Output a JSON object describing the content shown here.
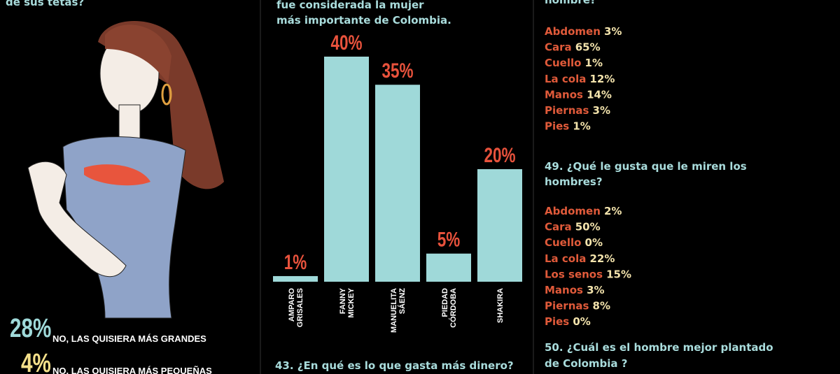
{
  "left": {
    "question_end": "de sus tetas?",
    "answers": [
      {
        "percent": "28%",
        "label": "NO, LAS QUISIERA MÁS GRANDES"
      },
      {
        "percent": "4%",
        "label": "NO, LAS QUISIERA MÁS PEQUEÑAS"
      }
    ]
  },
  "middle": {
    "question_lines": [
      "fue considerada la mujer",
      "más importante de Colombia."
    ],
    "chart_data": {
      "type": "bar",
      "categories": [
        [
          "AMPARO",
          "GRISALES"
        ],
        [
          "FANNY",
          "MICKEY"
        ],
        [
          "MANUELITA",
          "SÁENZ"
        ],
        [
          "PIEDAD",
          "CÓRDOBA"
        ],
        [
          "SHAKIRA"
        ]
      ],
      "values": [
        1,
        40,
        35,
        5,
        20
      ],
      "value_labels": [
        "1%",
        "40%",
        "35%",
        "5%",
        "20%"
      ],
      "color": "#9fd9d9",
      "label_color": "#e8523c"
    },
    "next_question": "43. ¿En qué es lo que gasta más dinero?"
  },
  "right": {
    "question_end": "hombre?",
    "list_1": [
      [
        "Abdomen",
        "3%"
      ],
      [
        "Cara",
        "65%"
      ],
      [
        "Cuello",
        "1%"
      ],
      [
        "La cola",
        "12%"
      ],
      [
        "Manos",
        "14%"
      ],
      [
        "Piernas",
        "3%"
      ],
      [
        "Pies",
        "1%"
      ]
    ],
    "question_49": [
      "49. ¿Qué le gusta que le miren los",
      "hombres?"
    ],
    "list_2": [
      [
        "Abdomen",
        "2%"
      ],
      [
        "Cara",
        "50%"
      ],
      [
        "Cuello",
        "0%"
      ],
      [
        "La cola",
        "22%"
      ],
      [
        "Los senos",
        "15%"
      ],
      [
        "Manos",
        "3%"
      ],
      [
        "Piernas",
        "8%"
      ],
      [
        "Pies",
        "0%"
      ]
    ],
    "question_50": [
      "50. ¿Cuál es el hombre mejor plantado",
      "de Colombia ?"
    ]
  }
}
